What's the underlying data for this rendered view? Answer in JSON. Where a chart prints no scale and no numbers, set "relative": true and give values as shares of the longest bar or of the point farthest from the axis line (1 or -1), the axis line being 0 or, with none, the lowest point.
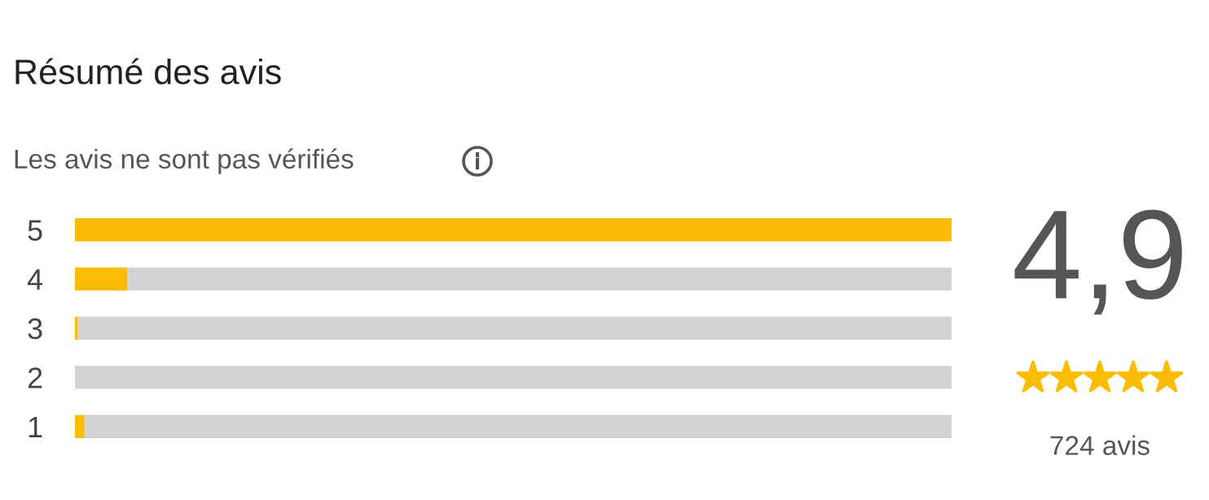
{
  "chart_data": {
    "type": "bar",
    "orientation": "horizontal",
    "stacked": true,
    "relative": true,
    "title": "Résumé des avis",
    "subtitle": "Les avis ne sont pas vérifiés",
    "categories": [
      "5",
      "4",
      "3",
      "2",
      "1"
    ],
    "series": [
      {
        "color": "#fbbc04",
        "values": [
          1,
          0.06,
          0.003,
          0,
          0.011
        ]
      },
      {
        "color": "#d3d3d3",
        "values": [
          0,
          0.94,
          0.997,
          1,
          0.989
        ]
      }
    ],
    "annotations": [
      "4,9",
      "724 avis"
    ],
    "grid": false,
    "legend": false
  }
}
